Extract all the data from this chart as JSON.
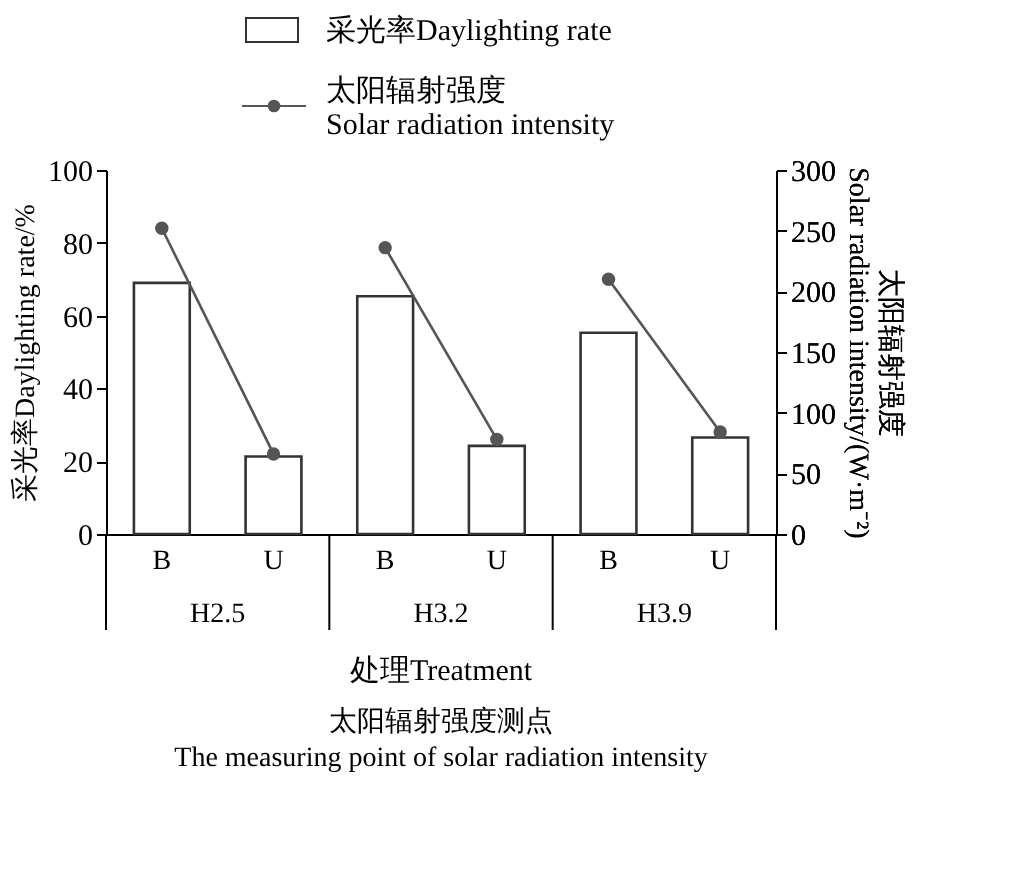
{
  "chart_data": {
    "type": "bar",
    "categories": [
      "B",
      "U",
      "B",
      "U",
      "B",
      "U"
    ],
    "series": [
      {
        "name": "采光率Daylighting rate",
        "color": "#333333",
        "values": [
          69,
          21.3,
          65.3,
          24.2,
          55.3,
          26.5
        ]
      },
      {
        "name": "太阳辐射强度\nSolar radiation intensity",
        "type": "line",
        "axis": "y2",
        "color": "#555555",
        "marker": "circle",
        "values": [
          252,
          66,
          236,
          78,
          210,
          84
        ]
      }
    ],
    "xlabel": "处理Treatment",
    "ylabel": "采光率Daylighting rate/%",
    "y2label": "太阳辐射强度\nSolar radiation intensity/(W·m⁻²)",
    "ylim": [
      0,
      100
    ],
    "yticks": [
      0,
      20,
      40,
      60,
      80,
      100
    ],
    "y2lim": [
      0,
      300
    ],
    "y2ticks": [
      0,
      50,
      100,
      150,
      200,
      250,
      300
    ],
    "legend": "top",
    "grid": false,
    "annotations": [
      "H2.5",
      "H3.2",
      "H3.9",
      "太阳辐射强度测点",
      "The measuring point of solar radiation intensity"
    ]
  }
}
